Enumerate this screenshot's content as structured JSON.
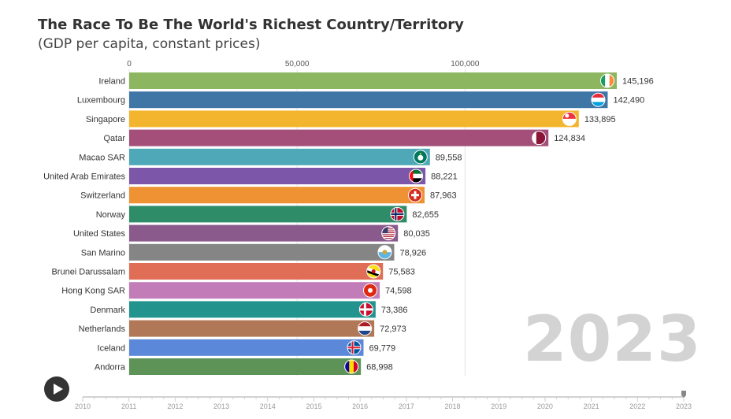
{
  "chart_data": {
    "type": "bar",
    "orientation": "horizontal",
    "title": "The Race To Be The World's Richest Country/Territory",
    "subtitle": "(GDP per capita, constant prices)",
    "xlim": [
      0,
      145196
    ],
    "x_ticks": [
      0,
      50000,
      100000
    ],
    "x_tick_labels": [
      "0",
      "50,000",
      "100,000"
    ],
    "grid": true,
    "categories": [
      "Ireland",
      "Luxembourg",
      "Singapore",
      "Qatar",
      "Macao SAR",
      "United Arab Emirates",
      "Switzerland",
      "Norway",
      "United States",
      "San Marino",
      "Brunei Darussalam",
      "Hong Kong SAR",
      "Denmark",
      "Netherlands",
      "Iceland",
      "Andorra"
    ],
    "values": [
      145196,
      142490,
      133895,
      124834,
      89558,
      88221,
      87963,
      82655,
      80035,
      78926,
      75583,
      74598,
      73386,
      72973,
      69779,
      68998
    ],
    "value_labels": [
      "145,196",
      "142,490",
      "133,895",
      "124,834",
      "89,558",
      "88,221",
      "87,963",
      "82,655",
      "80,035",
      "78,926",
      "75,583",
      "74,598",
      "73,386",
      "72,973",
      "69,779",
      "68,998"
    ],
    "colors": [
      "#8db660",
      "#3f76a6",
      "#f3b52e",
      "#a34f79",
      "#4fa8b8",
      "#7c56a8",
      "#ee9234",
      "#2f8c68",
      "#8a5a8d",
      "#858585",
      "#e06e57",
      "#c27cb8",
      "#23938e",
      "#b07857",
      "#5b88d8",
      "#5e9358"
    ],
    "flags": [
      "ireland-flag-icon",
      "luxembourg-flag-icon",
      "singapore-flag-icon",
      "qatar-flag-icon",
      "macao-flag-icon",
      "uae-flag-icon",
      "switzerland-flag-icon",
      "norway-flag-icon",
      "usa-flag-icon",
      "san-marino-flag-icon",
      "brunei-flag-icon",
      "hong-kong-flag-icon",
      "denmark-flag-icon",
      "netherlands-flag-icon",
      "iceland-flag-icon",
      "andorra-flag-icon"
    ],
    "current_year": "2023",
    "timeline_years": [
      "2010",
      "2011",
      "2012",
      "2013",
      "2014",
      "2015",
      "2016",
      "2017",
      "2018",
      "2019",
      "2020",
      "2021",
      "2022",
      "2023"
    ],
    "timeline_position": 2023
  }
}
